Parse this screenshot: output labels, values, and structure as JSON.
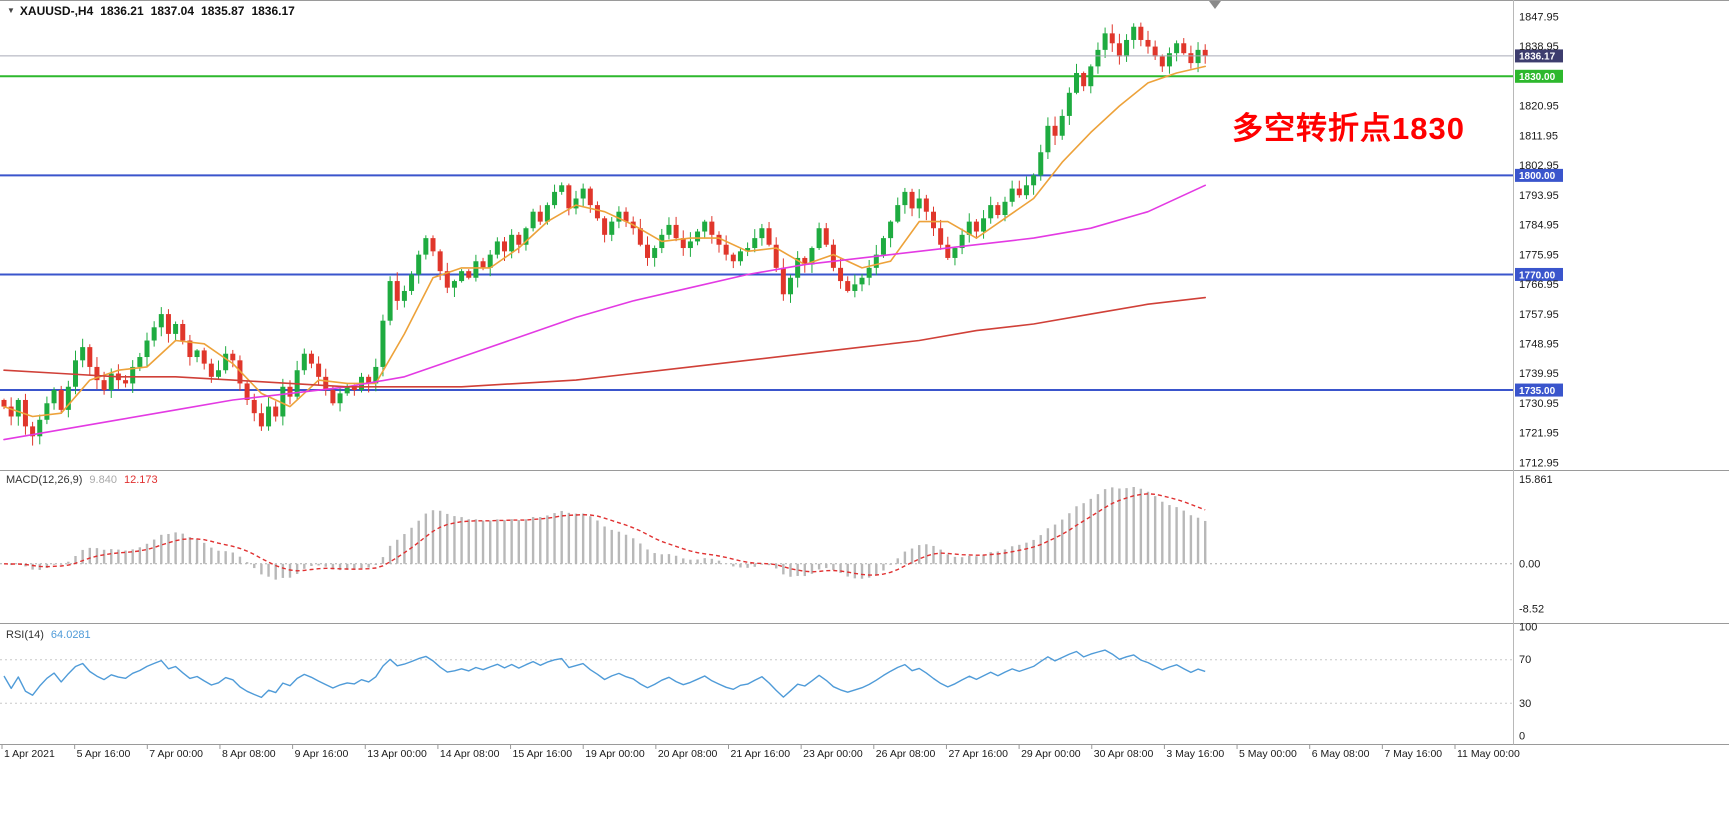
{
  "header": {
    "collapse_icon": "▼",
    "symbol_period": "XAUUSD-,H4",
    "open": "1836.21",
    "high": "1837.04",
    "low": "1835.87",
    "close": "1836.17"
  },
  "main_chart": {
    "annotation": {
      "text": "多空转折点1830",
      "color": "#ff0000"
    },
    "y_axis_labels": [
      "1847.95",
      "1838.95",
      "1820.95",
      "1811.95",
      "1802.95",
      "1793.95",
      "1784.95",
      "1775.95",
      "1766.95",
      "1757.95",
      "1748.95",
      "1739.95",
      "1730.95",
      "1721.95",
      "1712.95"
    ],
    "bid": {
      "label": "1836.17",
      "value": 1836.17,
      "line_color": "#a9aab6",
      "badge_color": "#3d3d6e"
    },
    "levels": [
      {
        "label": "1830.00",
        "value": 1830.0,
        "color": "#2db82d"
      },
      {
        "label": "1800.00",
        "value": 1800.0,
        "color": "#3a55cc"
      },
      {
        "label": "1770.00",
        "value": 1770.0,
        "color": "#3a55cc"
      },
      {
        "label": "1735.00",
        "value": 1735.0,
        "color": "#3a55cc"
      }
    ],
    "colors": {
      "up": "#1eab40",
      "down": "#e0362b"
    }
  },
  "chart_data": {
    "type": "candlestick",
    "symbol": "XAUUSD-",
    "timeframe": "H4",
    "ylim": [
      1711.4,
      1853.1
    ],
    "first_open": 1732,
    "closes": [
      1730,
      1727,
      1732,
      1724,
      1721,
      1726,
      1731,
      1735,
      1729,
      1736,
      1744,
      1748,
      1742,
      1738,
      1735,
      1740,
      1738,
      1737,
      1742,
      1745,
      1750,
      1754,
      1758,
      1752,
      1755,
      1750,
      1745,
      1747,
      1743,
      1739,
      1741,
      1746,
      1744,
      1737,
      1732,
      1728,
      1724,
      1730,
      1727,
      1736,
      1733,
      1741,
      1746,
      1743,
      1739,
      1735,
      1731,
      1734,
      1736,
      1735,
      1739,
      1737,
      1742,
      1756,
      1768,
      1762,
      1765,
      1770,
      1776,
      1781,
      1777,
      1771,
      1766,
      1768,
      1771,
      1769,
      1774,
      1772,
      1776,
      1780,
      1777,
      1782,
      1779,
      1784,
      1789,
      1786,
      1791,
      1795,
      1797,
      1790,
      1793,
      1796,
      1791,
      1787,
      1782,
      1786,
      1789,
      1786,
      1784,
      1779,
      1775,
      1778,
      1782,
      1785,
      1781,
      1778,
      1780,
      1783,
      1786,
      1782,
      1779,
      1776,
      1774,
      1777,
      1778,
      1781,
      1784,
      1779,
      1772,
      1764,
      1769,
      1775,
      1773,
      1778,
      1784,
      1779,
      1772,
      1768,
      1765,
      1767,
      1769,
      1772,
      1776,
      1781,
      1786,
      1791,
      1795,
      1790,
      1793,
      1789,
      1784,
      1779,
      1775,
      1778,
      1782,
      1786,
      1783,
      1787,
      1791,
      1788,
      1792,
      1796,
      1794,
      1797,
      1800,
      1807,
      1815,
      1812,
      1818,
      1825,
      1831,
      1827,
      1833,
      1838,
      1843,
      1840,
      1836,
      1841,
      1845,
      1841,
      1839,
      1836,
      1833,
      1837,
      1840,
      1837,
      1834,
      1838,
      1836.17
    ],
    "moving_averages": [
      {
        "name": "fast-ma",
        "color": "#eda23a",
        "points": [
          [
            0,
            1730
          ],
          [
            4,
            1727
          ],
          [
            8,
            1728
          ],
          [
            12,
            1738
          ],
          [
            16,
            1741
          ],
          [
            20,
            1742
          ],
          [
            24,
            1750
          ],
          [
            28,
            1749
          ],
          [
            32,
            1743
          ],
          [
            36,
            1734
          ],
          [
            40,
            1730
          ],
          [
            44,
            1738
          ],
          [
            48,
            1737
          ],
          [
            52,
            1737
          ],
          [
            56,
            1752
          ],
          [
            60,
            1769
          ],
          [
            64,
            1772
          ],
          [
            68,
            1772
          ],
          [
            72,
            1778
          ],
          [
            76,
            1786
          ],
          [
            80,
            1791
          ],
          [
            84,
            1789
          ],
          [
            88,
            1785
          ],
          [
            92,
            1780
          ],
          [
            96,
            1781
          ],
          [
            100,
            1781
          ],
          [
            104,
            1777
          ],
          [
            108,
            1778
          ],
          [
            112,
            1773
          ],
          [
            116,
            1776
          ],
          [
            120,
            1772
          ],
          [
            124,
            1774
          ],
          [
            128,
            1786
          ],
          [
            132,
            1786
          ],
          [
            136,
            1781
          ],
          [
            140,
            1787
          ],
          [
            144,
            1793
          ],
          [
            148,
            1804
          ],
          [
            152,
            1813
          ],
          [
            156,
            1821
          ],
          [
            160,
            1828
          ],
          [
            164,
            1831
          ],
          [
            168,
            1833
          ]
        ]
      },
      {
        "name": "medium-ma",
        "color": "#e33ae3",
        "points": [
          [
            0,
            1720
          ],
          [
            8,
            1723
          ],
          [
            16,
            1726
          ],
          [
            24,
            1729
          ],
          [
            32,
            1732
          ],
          [
            40,
            1734
          ],
          [
            48,
            1736
          ],
          [
            56,
            1739
          ],
          [
            64,
            1745
          ],
          [
            72,
            1751
          ],
          [
            80,
            1757
          ],
          [
            88,
            1762
          ],
          [
            96,
            1766
          ],
          [
            104,
            1770
          ],
          [
            112,
            1773
          ],
          [
            120,
            1775
          ],
          [
            128,
            1777
          ],
          [
            136,
            1779
          ],
          [
            144,
            1781
          ],
          [
            152,
            1784
          ],
          [
            160,
            1789
          ],
          [
            168,
            1797
          ]
        ]
      },
      {
        "name": "slow-ma",
        "color": "#d04038",
        "points": [
          [
            0,
            1741
          ],
          [
            8,
            1740
          ],
          [
            16,
            1739
          ],
          [
            24,
            1739
          ],
          [
            32,
            1738
          ],
          [
            40,
            1737
          ],
          [
            48,
            1736
          ],
          [
            56,
            1736
          ],
          [
            64,
            1736
          ],
          [
            72,
            1737
          ],
          [
            80,
            1738
          ],
          [
            88,
            1740
          ],
          [
            96,
            1742
          ],
          [
            104,
            1744
          ],
          [
            112,
            1746
          ],
          [
            120,
            1748
          ],
          [
            128,
            1750
          ],
          [
            136,
            1753
          ],
          [
            144,
            1755
          ],
          [
            152,
            1758
          ],
          [
            160,
            1761
          ],
          [
            168,
            1763
          ]
        ]
      }
    ],
    "macd": {
      "fast": 12,
      "slow": 26,
      "signal": 9,
      "ylim": [
        -10.6,
        17.3
      ],
      "histogram_color": "#b8b8b8",
      "signal_color": "#e03030"
    },
    "rsi": {
      "period": 14,
      "color": "#4f9bd8",
      "guides": [
        70,
        30
      ]
    }
  },
  "macd_pane": {
    "label": "MACD(12,26,9)",
    "value_main": "9.840",
    "value_signal": "12.173",
    "axis": [
      {
        "text": "15.861",
        "value": 15.861
      },
      {
        "text": "0.00",
        "value": 0
      },
      {
        "text": "-8.52",
        "value": -8.52
      }
    ]
  },
  "rsi_pane": {
    "label": "RSI(14)",
    "value": "64.0281",
    "axis": [
      {
        "text": "100",
        "value": 100
      },
      {
        "text": "70",
        "value": 70
      },
      {
        "text": "30",
        "value": 30
      },
      {
        "text": "0",
        "value": 0
      }
    ]
  },
  "time_axis": {
    "labels": [
      "1 Apr 2021",
      "5 Apr 16:00",
      "7 Apr 00:00",
      "8 Apr 08:00",
      "9 Apr 16:00",
      "13 Apr 00:00",
      "14 Apr 08:00",
      "15 Apr 16:00",
      "19 Apr 00:00",
      "20 Apr 08:00",
      "21 Apr 16:00",
      "23 Apr 00:00",
      "26 Apr 08:00",
      "27 Apr 16:00",
      "29 Apr 00:00",
      "30 Apr 08:00",
      "3 May 16:00",
      "5 May 00:00",
      "6 May 08:00",
      "7 May 16:00",
      "11 May 00:00"
    ]
  }
}
